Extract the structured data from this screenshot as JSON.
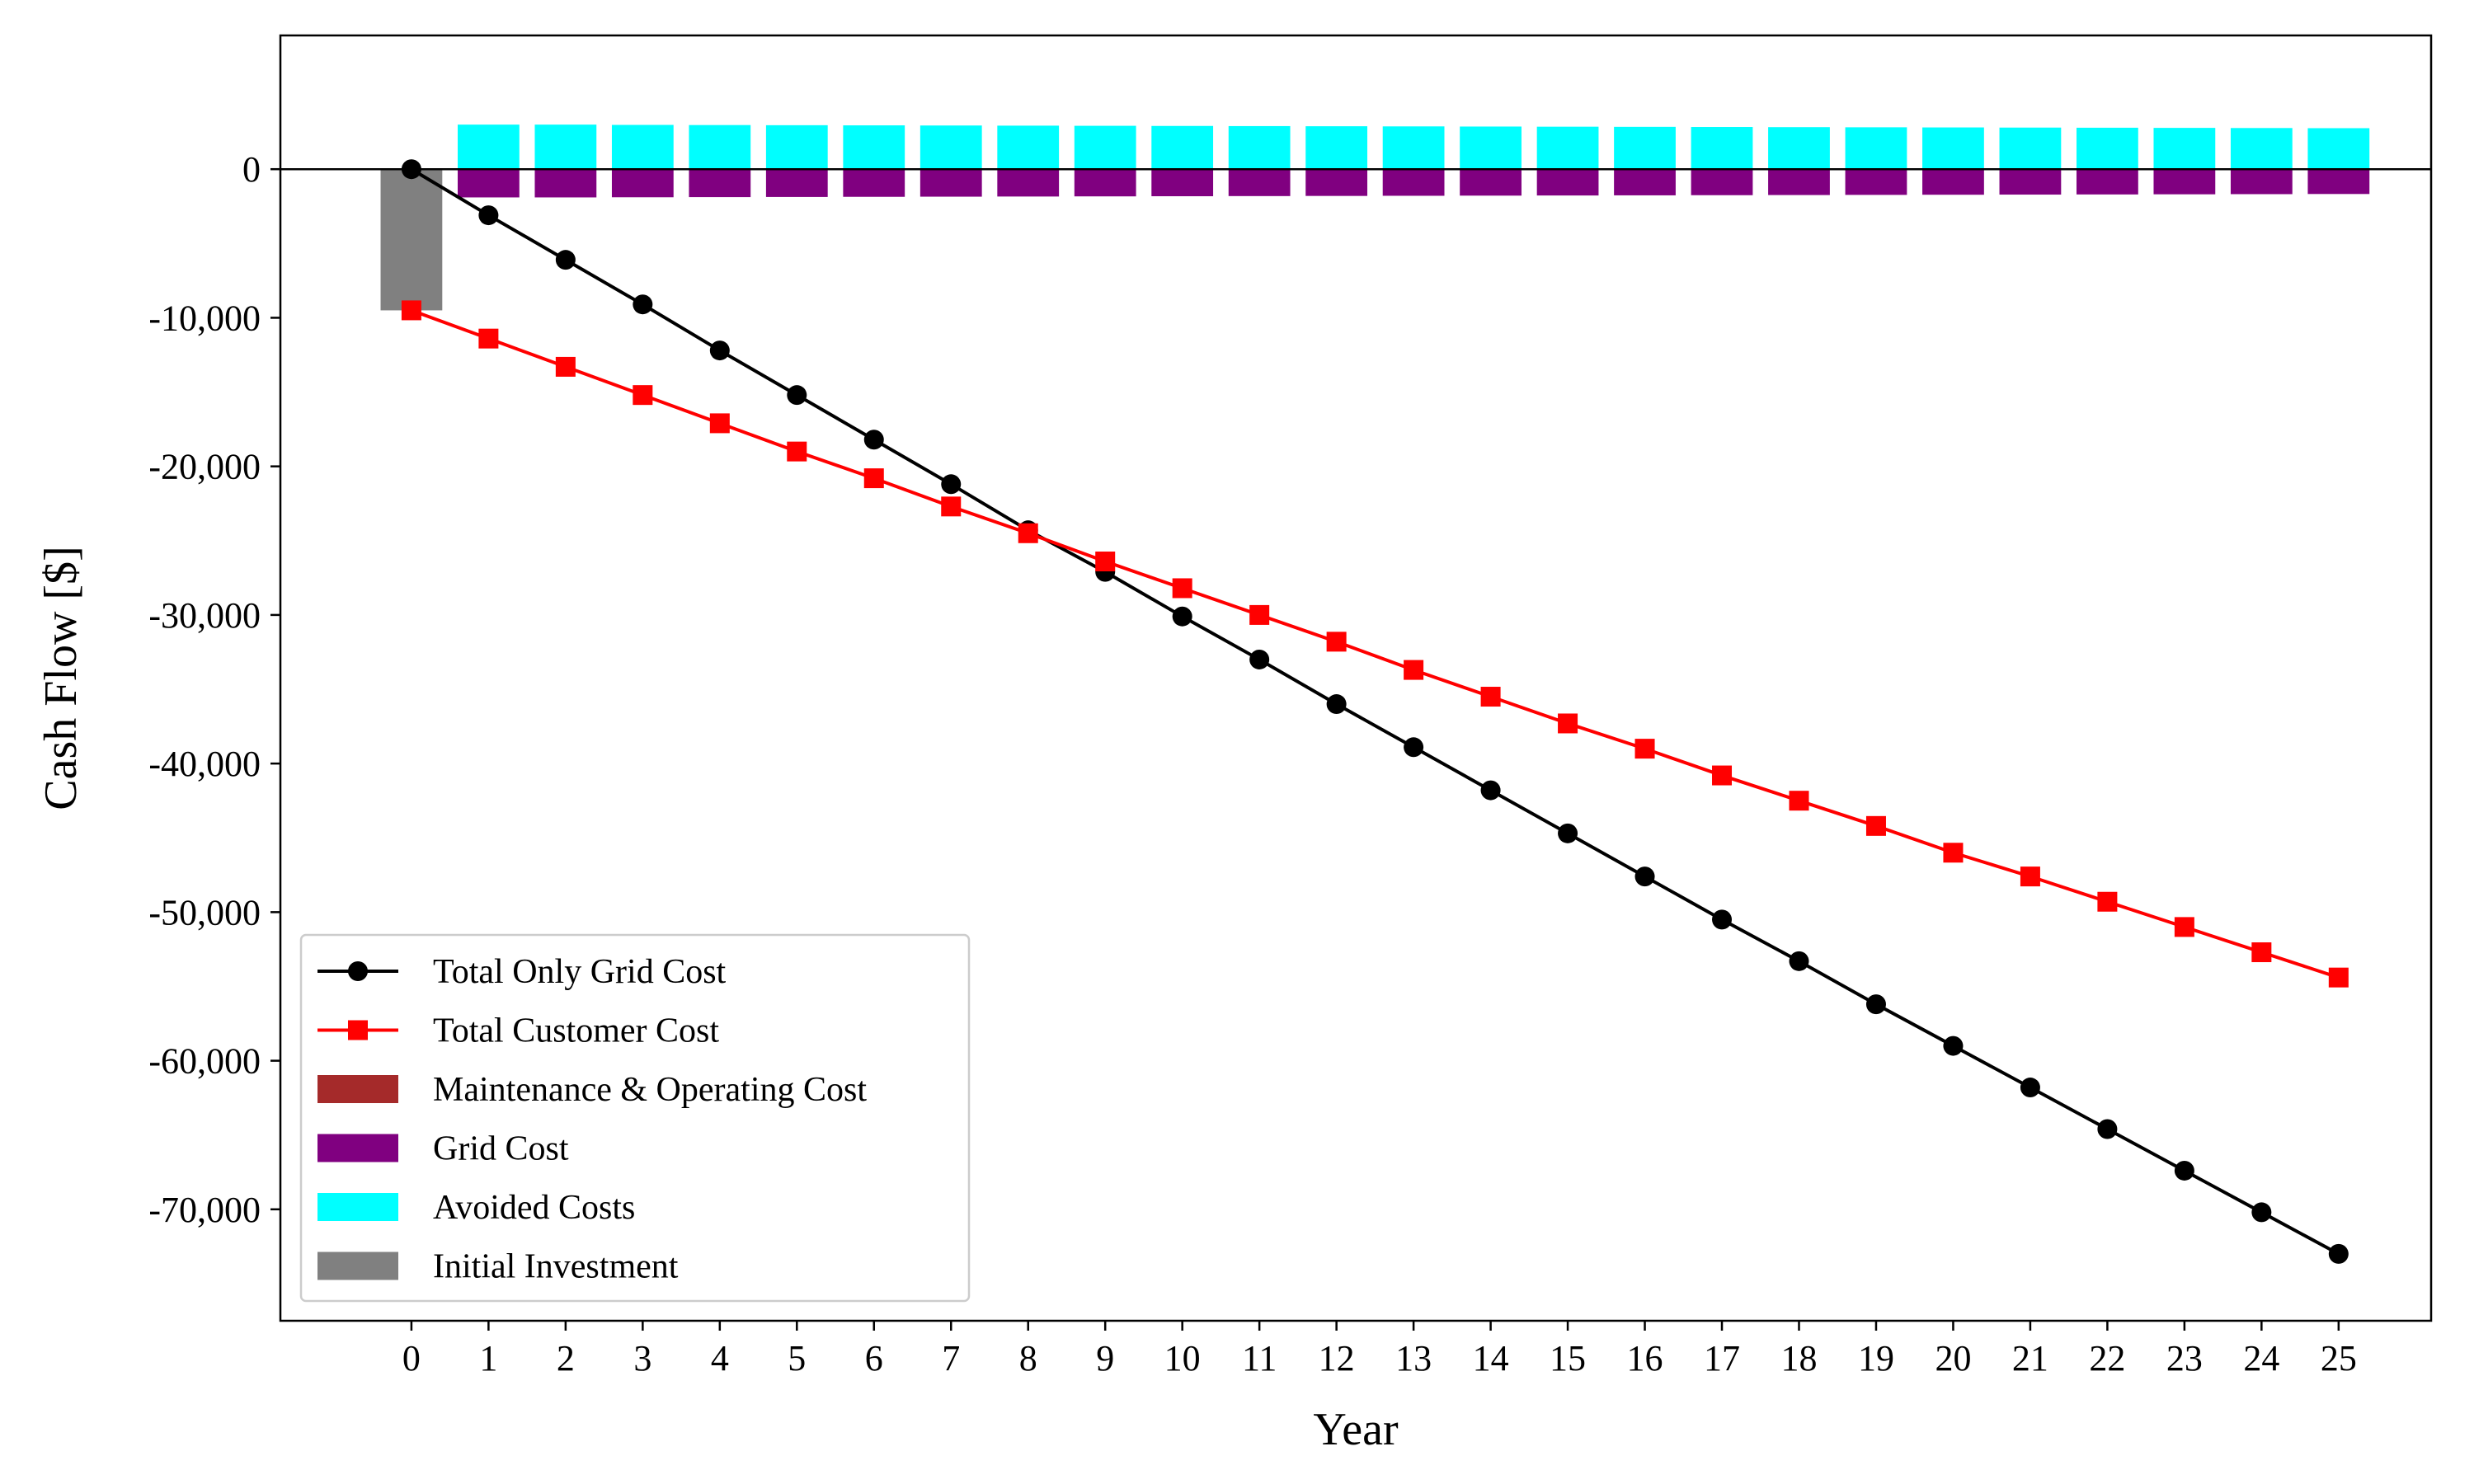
{
  "chart_data": {
    "type": "bar",
    "title": "",
    "xlabel": "Year",
    "ylabel": "Cash Flow [$]",
    "x": [
      0,
      1,
      2,
      3,
      4,
      5,
      6,
      7,
      8,
      9,
      10,
      11,
      12,
      13,
      14,
      15,
      16,
      17,
      18,
      19,
      20,
      21,
      22,
      23,
      24,
      25
    ],
    "xlim": [
      -1.7,
      26.2
    ],
    "ylim": [
      -77500,
      9000
    ],
    "yticks": [
      0,
      -10000,
      -20000,
      -30000,
      -40000,
      -50000,
      -60000,
      -70000
    ],
    "ytick_labels": [
      "0",
      "-10,000",
      "-20,000",
      "-30,000",
      "-40,000",
      "-50,000",
      "-60,000",
      "-70,000"
    ],
    "grid": false,
    "legend_position": "lower-left",
    "bar_series": [
      {
        "name": "Maintenance & Operating Cost",
        "color": "#a52a2a",
        "x": [],
        "values": []
      },
      {
        "name": "Grid Cost",
        "color": "#800080",
        "x": [
          1,
          2,
          3,
          4,
          5,
          6,
          7,
          8,
          9,
          10,
          11,
          12,
          13,
          14,
          15,
          16,
          17,
          18,
          19,
          20,
          21,
          22,
          23,
          24,
          25
        ],
        "values": [
          -1900,
          -1900,
          -1890,
          -1880,
          -1870,
          -1860,
          -1850,
          -1840,
          -1830,
          -1820,
          -1810,
          -1800,
          -1790,
          -1780,
          -1770,
          -1760,
          -1750,
          -1740,
          -1730,
          -1720,
          -1710,
          -1700,
          -1690,
          -1680,
          -1670
        ]
      },
      {
        "name": "Avoided Costs",
        "color": "#00ffff",
        "x": [
          1,
          2,
          3,
          4,
          5,
          6,
          7,
          8,
          9,
          10,
          11,
          12,
          13,
          14,
          15,
          16,
          17,
          18,
          19,
          20,
          21,
          22,
          23,
          24,
          25
        ],
        "values": [
          3000,
          3000,
          2980,
          2970,
          2960,
          2950,
          2940,
          2930,
          2920,
          2910,
          2900,
          2890,
          2880,
          2870,
          2860,
          2850,
          2840,
          2830,
          2820,
          2810,
          2800,
          2790,
          2780,
          2770,
          2760
        ]
      },
      {
        "name": "Initial Investment",
        "color": "#808080",
        "x": [
          0
        ],
        "values": [
          -9500
        ]
      }
    ],
    "line_series": [
      {
        "name": "Total Only Grid Cost",
        "color": "#000000",
        "marker": "circle",
        "x": [
          0,
          1,
          2,
          3,
          4,
          5,
          6,
          7,
          8,
          9,
          10,
          11,
          12,
          13,
          14,
          15,
          16,
          17,
          18,
          19,
          20,
          21,
          22,
          23,
          24,
          25
        ],
        "values": [
          0,
          -3100,
          -6100,
          -9100,
          -12200,
          -15200,
          -18200,
          -21200,
          -24300,
          -27100,
          -30100,
          -33000,
          -36000,
          -38900,
          -41800,
          -44700,
          -47600,
          -50500,
          -53300,
          -56200,
          -59000,
          -61800,
          -64600,
          -67400,
          -70200,
          -73000
        ]
      },
      {
        "name": "Total Customer Cost",
        "color": "#ff0000",
        "marker": "square",
        "x": [
          0,
          1,
          2,
          3,
          4,
          5,
          6,
          7,
          8,
          9,
          10,
          11,
          12,
          13,
          14,
          15,
          16,
          17,
          18,
          19,
          20,
          21,
          22,
          23,
          24,
          25
        ],
        "values": [
          -9500,
          -11400,
          -13300,
          -15200,
          -17100,
          -19000,
          -20800,
          -22700,
          -24500,
          -26400,
          -28200,
          -30000,
          -31800,
          -33700,
          -35500,
          -37300,
          -39000,
          -40800,
          -42500,
          -44200,
          -46000,
          -47600,
          -49300,
          -51000,
          -52700,
          -54400
        ]
      }
    ],
    "legend": [
      {
        "label": "Total Only Grid Cost",
        "kind": "line",
        "color": "#000000",
        "marker": "circle"
      },
      {
        "label": "Total Customer Cost",
        "kind": "line",
        "color": "#ff0000",
        "marker": "square"
      },
      {
        "label": "Maintenance & Operating Cost",
        "kind": "patch",
        "color": "#a52a2a"
      },
      {
        "label": "Grid Cost",
        "kind": "patch",
        "color": "#800080"
      },
      {
        "label": "Avoided Costs",
        "kind": "patch",
        "color": "#00ffff"
      },
      {
        "label": "Initial Investment",
        "kind": "patch",
        "color": "#808080"
      }
    ]
  }
}
